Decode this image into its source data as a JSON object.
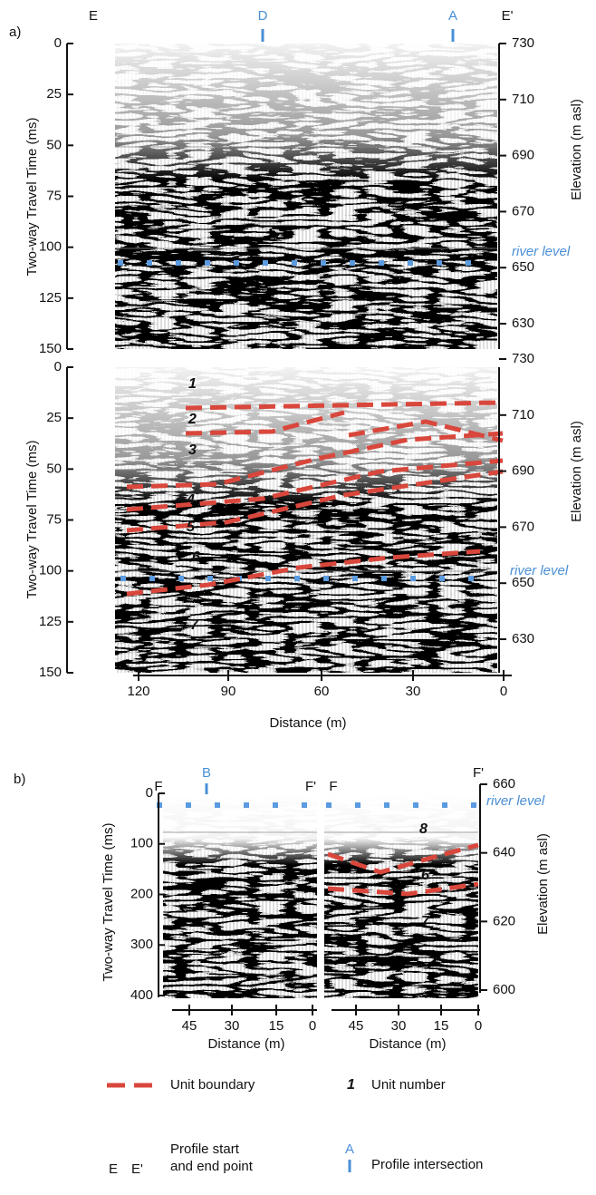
{
  "panel_a": {
    "label": "a)",
    "top_labels": [
      "E",
      "D",
      "A",
      "E'"
    ],
    "y_axis_title": "Two-way Travel Time (ms)",
    "y2_axis_title": "Elevation (m asl)",
    "time_ticks": [
      0,
      25,
      50,
      75,
      100,
      125,
      150
    ],
    "elevation_ticks": [
      730,
      710,
      690,
      670,
      650,
      630
    ],
    "river_level": "river level",
    "unit_numbers": [
      "1",
      "2",
      "3",
      "4",
      "5",
      "6",
      "7"
    ],
    "distance_ticks": [
      120,
      90,
      60,
      30,
      0
    ],
    "x_axis_title": "Distance (m)"
  },
  "panel_b": {
    "label": "b)",
    "top_labels": [
      "F",
      "B",
      "F'",
      "F",
      "F'"
    ],
    "y_axis_title": "Two-way Travel Time (ms)",
    "y2_axis_title": "Elevation (m asl)",
    "time_ticks": [
      0,
      100,
      200,
      300,
      400
    ],
    "elevation_ticks": [
      660,
      640,
      620,
      600
    ],
    "river_level": "river level",
    "unit_numbers": [
      "8",
      "6",
      "7"
    ],
    "distance_ticks": [
      45,
      30,
      15,
      0
    ],
    "x_axis_title": "Distance (m)"
  },
  "legend": {
    "unit_boundary": "Unit boundary",
    "unit_number_symbol": "1",
    "unit_number": "Unit number",
    "profile_start_symbol": "E",
    "profile_end_symbol": "E'",
    "profile_start_end": [
      "Profile start",
      "and end point"
    ],
    "intersection_symbol": "A",
    "profile_intersection": "Profile intersection"
  }
}
